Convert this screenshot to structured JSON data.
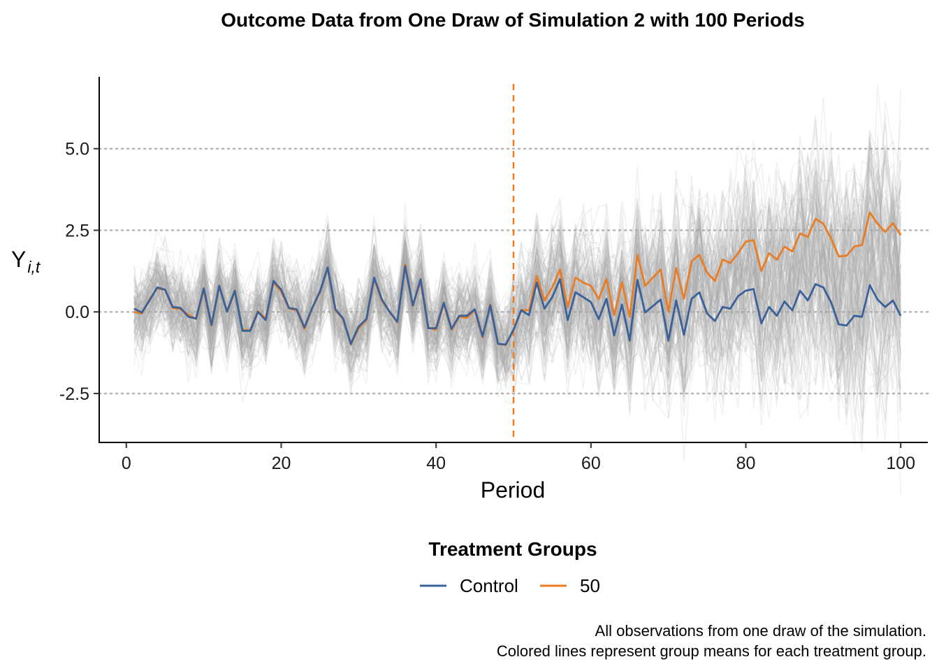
{
  "chart_data": {
    "type": "line",
    "title": "Outcome Data from One Draw of Simulation 2 with 100 Periods",
    "xlabel": "Period",
    "ylabel": "Y",
    "ylabel_subscript": "i,t",
    "xlim": [
      -3.5,
      103.5
    ],
    "ylim": [
      -4.0,
      7.2
    ],
    "x_ticks": [
      0,
      20,
      40,
      60,
      80,
      100
    ],
    "x_tick_labels": [
      "0",
      "20",
      "40",
      "60",
      "80",
      "100"
    ],
    "y_ticks": [
      -2.5,
      0,
      2.5,
      5
    ],
    "y_tick_labels": [
      "-2.5",
      "0.0",
      "2.5",
      "5.0"
    ],
    "grid": "horizontal dotted at y ticks",
    "treatment_period": 50,
    "background_lines": "all individual observations (gray, semi-transparent)",
    "legend": {
      "title": "Treatment Groups",
      "position": "bottom",
      "items": [
        {
          "label": "Control",
          "color": "#3a6199"
        },
        {
          "label": "50",
          "color": "#e87d26"
        }
      ]
    },
    "x": [
      1,
      2,
      3,
      4,
      5,
      6,
      7,
      8,
      9,
      10,
      11,
      12,
      13,
      14,
      15,
      16,
      17,
      18,
      19,
      20,
      21,
      22,
      23,
      24,
      25,
      26,
      27,
      28,
      29,
      30,
      31,
      32,
      33,
      34,
      35,
      36,
      37,
      38,
      39,
      40,
      41,
      42,
      43,
      44,
      45,
      46,
      47,
      48,
      49,
      50,
      51,
      52,
      53,
      54,
      55,
      56,
      57,
      58,
      59,
      60,
      61,
      62,
      63,
      64,
      65,
      66,
      67,
      68,
      69,
      70,
      71,
      72,
      73,
      74,
      75,
      76,
      77,
      78,
      79,
      80,
      81,
      82,
      83,
      84,
      85,
      86,
      87,
      88,
      89,
      90,
      91,
      92,
      93,
      94,
      95,
      96,
      97,
      98,
      99,
      100
    ],
    "series": [
      {
        "name": "Control",
        "color": "#3a6199",
        "values": [
          0.1,
          -0.02,
          0.35,
          0.75,
          0.68,
          0.15,
          0.12,
          -0.15,
          -0.2,
          0.72,
          -0.4,
          0.8,
          0.0,
          0.65,
          -0.58,
          -0.58,
          0.0,
          -0.25,
          0.95,
          0.68,
          0.12,
          0.08,
          -0.48,
          0.12,
          0.62,
          1.36,
          0.08,
          -0.2,
          -0.98,
          -0.45,
          -0.22,
          1.05,
          0.38,
          0.0,
          -0.3,
          1.4,
          0.2,
          1.0,
          -0.5,
          -0.5,
          0.28,
          -0.52,
          -0.12,
          -0.12,
          0.08,
          -0.75,
          0.2,
          -0.98,
          -1.0,
          -0.55,
          0.05,
          -0.1,
          0.9,
          0.1,
          0.45,
          1.0,
          -0.25,
          0.6,
          0.45,
          0.3,
          -0.22,
          0.4,
          -0.72,
          0.22,
          -0.88,
          0.98,
          -0.02,
          0.18,
          0.38,
          -0.88,
          0.35,
          -0.7,
          0.4,
          0.6,
          -0.05,
          -0.28,
          0.15,
          0.1,
          0.48,
          0.65,
          0.7,
          -0.35,
          0.15,
          -0.12,
          0.32,
          0.05,
          0.65,
          0.35,
          0.85,
          0.75,
          0.3,
          -0.38,
          -0.42,
          -0.12,
          -0.15,
          0.82,
          0.38,
          0.15,
          0.35,
          -0.12
        ]
      },
      {
        "name": "50",
        "color": "#e87d26",
        "values": [
          0.0,
          -0.05,
          0.38,
          0.72,
          0.68,
          0.12,
          0.08,
          -0.08,
          -0.22,
          0.68,
          -0.42,
          0.78,
          0.02,
          0.62,
          -0.55,
          -0.56,
          0.02,
          -0.2,
          0.9,
          0.62,
          0.1,
          0.05,
          -0.52,
          0.1,
          0.6,
          1.35,
          0.05,
          -0.22,
          -1.0,
          -0.5,
          -0.25,
          1.0,
          0.35,
          0.0,
          -0.32,
          1.45,
          0.18,
          0.95,
          -0.48,
          -0.55,
          0.25,
          -0.55,
          -0.15,
          -0.18,
          0.05,
          -0.78,
          0.22,
          -0.98,
          -1.02,
          -0.55,
          0.05,
          0.05,
          1.1,
          0.35,
          0.75,
          1.3,
          0.15,
          1.05,
          0.9,
          0.8,
          0.4,
          1.0,
          -0.1,
          0.9,
          -0.15,
          1.75,
          0.8,
          1.05,
          1.3,
          0.0,
          1.35,
          0.4,
          1.55,
          1.75,
          1.2,
          0.95,
          1.6,
          1.5,
          1.8,
          2.15,
          2.2,
          1.25,
          1.8,
          1.6,
          2.0,
          1.85,
          2.4,
          2.3,
          2.85,
          2.7,
          2.25,
          1.7,
          1.72,
          2.0,
          2.05,
          3.05,
          2.7,
          2.45,
          2.72,
          2.35
        ]
      }
    ]
  },
  "caption_lines": [
    "All observations from one draw of the simulation.",
    "Colored lines represent group means for each treatment group."
  ]
}
